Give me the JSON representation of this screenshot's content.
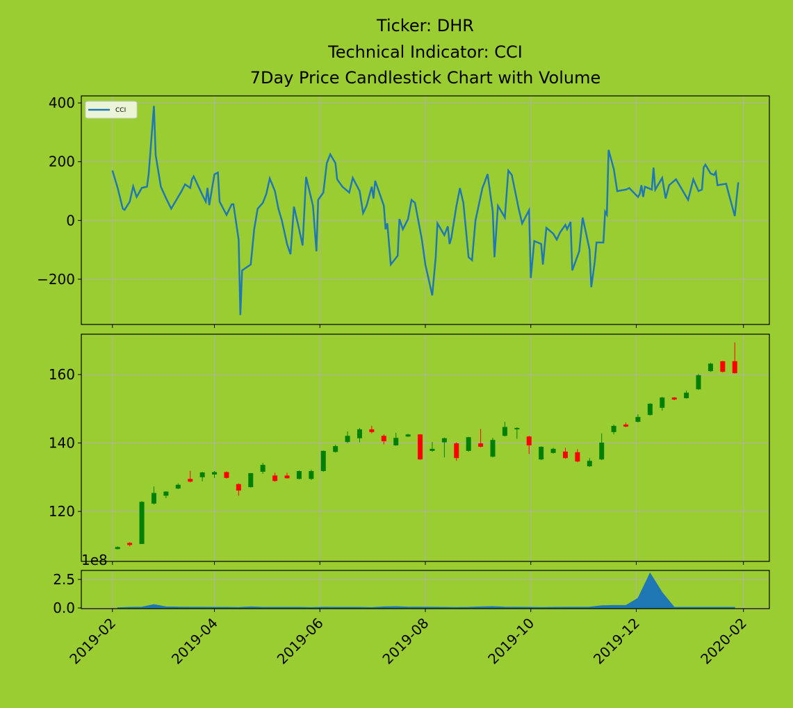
{
  "chart_data": [
    {
      "type": "line",
      "title": [
        "Ticker: DHR",
        "Technical Indicator: CCI",
        "7Day Price Candlestick Chart with Volume"
      ],
      "x": [
        "2019-02-01",
        "2019-02-04",
        "2019-02-07",
        "2019-02-08",
        "2019-02-11",
        "2019-02-13",
        "2019-02-15",
        "2019-02-18",
        "2019-02-21",
        "2019-02-22",
        "2019-02-25",
        "2019-02-26",
        "2019-03-01",
        "2019-03-04",
        "2019-03-07",
        "2019-03-08",
        "2019-03-13",
        "2019-03-15",
        "2019-03-18",
        "2019-03-19",
        "2019-03-20",
        "2019-03-25",
        "2019-03-27",
        "2019-03-28",
        "2019-03-29",
        "2019-04-01",
        "2019-04-03",
        "2019-04-04",
        "2019-04-08",
        "2019-04-11",
        "2019-04-12",
        "2019-04-15",
        "2019-04-16",
        "2019-04-17",
        "2019-04-22",
        "2019-04-24",
        "2019-04-26",
        "2019-04-29",
        "2019-05-01",
        "2019-05-03",
        "2019-05-06",
        "2019-05-08",
        "2019-05-10",
        "2019-05-13",
        "2019-05-15",
        "2019-05-17",
        "2019-05-20",
        "2019-05-22",
        "2019-05-24",
        "2019-05-28",
        "2019-05-30",
        "2019-05-31",
        "2019-06-03",
        "2019-06-05",
        "2019-06-07",
        "2019-06-10",
        "2019-06-11",
        "2019-06-14",
        "2019-06-18",
        "2019-06-20",
        "2019-06-24",
        "2019-06-26",
        "2019-06-28",
        "2019-07-01",
        "2019-07-02",
        "2019-07-03",
        "2019-07-08",
        "2019-07-09",
        "2019-07-10",
        "2019-07-12",
        "2019-07-16",
        "2019-07-17",
        "2019-07-19",
        "2019-07-22",
        "2019-07-24",
        "2019-07-26",
        "2019-07-30",
        "2019-08-01",
        "2019-08-05",
        "2019-08-07",
        "2019-08-08",
        "2019-08-12",
        "2019-08-14",
        "2019-08-15",
        "2019-08-16",
        "2019-08-19",
        "2019-08-21",
        "2019-08-23",
        "2019-08-26",
        "2019-08-28",
        "2019-08-30",
        "2019-09-03",
        "2019-09-04",
        "2019-09-06",
        "2019-09-09",
        "2019-09-10",
        "2019-09-12",
        "2019-09-16",
        "2019-09-18",
        "2019-09-20",
        "2019-09-24",
        "2019-09-26",
        "2019-09-30",
        "2019-10-01",
        "2019-10-03",
        "2019-10-07",
        "2019-10-08",
        "2019-10-10",
        "2019-10-14",
        "2019-10-16",
        "2019-10-18",
        "2019-10-21",
        "2019-10-22",
        "2019-10-24",
        "2019-10-25",
        "2019-10-29",
        "2019-10-31",
        "2019-11-04",
        "2019-11-05",
        "2019-11-07",
        "2019-11-08",
        "2019-11-12",
        "2019-11-13",
        "2019-11-14",
        "2019-11-15",
        "2019-11-18",
        "2019-11-20",
        "2019-11-25",
        "2019-11-27",
        "2019-12-02",
        "2019-12-03",
        "2019-12-04",
        "2019-12-05",
        "2019-12-06",
        "2019-12-10",
        "2019-12-11",
        "2019-12-12",
        "2019-12-16",
        "2019-12-18",
        "2019-12-20",
        "2019-12-24",
        "2019-12-27",
        "2019-12-31",
        "2020-01-03",
        "2020-01-06",
        "2020-01-08",
        "2020-01-09",
        "2020-01-10",
        "2020-01-13",
        "2020-01-15",
        "2020-01-16",
        "2020-01-17",
        "2020-01-22",
        "2020-01-24",
        "2020-01-27",
        "2020-01-29"
      ],
      "series": [
        {
          "name": "CCI",
          "color": "#1f77b4",
          "values": [
            170,
            111,
            40,
            36,
            64,
            116,
            80,
            111,
            115,
            160,
            390,
            223,
            115,
            76,
            40,
            50,
            100,
            123,
            111,
            140,
            150,
            87,
            64,
            111,
            52,
            157,
            163,
            64,
            19,
            55,
            55,
            -65,
            -322,
            -170,
            -150,
            -30,
            40,
            60,
            90,
            143,
            100,
            40,
            0,
            -80,
            -115,
            47,
            -30,
            -85,
            148,
            50,
            -105,
            70,
            95,
            195,
            225,
            195,
            140,
            115,
            95,
            145,
            100,
            25,
            50,
            115,
            75,
            135,
            50,
            -30,
            -10,
            -150,
            -120,
            5,
            -30,
            5,
            70,
            60,
            -65,
            -150,
            -255,
            -125,
            -10,
            -50,
            -20,
            -80,
            -60,
            50,
            110,
            60,
            -125,
            -135,
            0,
            110,
            125,
            158,
            30,
            -125,
            50,
            10,
            170,
            155,
            40,
            -10,
            35,
            -196,
            -70,
            -80,
            -150,
            -25,
            -45,
            -65,
            -40,
            -15,
            -30,
            -5,
            -170,
            -105,
            10,
            -100,
            -227,
            -140,
            -75,
            -75,
            30,
            20,
            240,
            175,
            100,
            105,
            110,
            80,
            90,
            120,
            80,
            115,
            105,
            180,
            105,
            145,
            75,
            120,
            140,
            110,
            70,
            140,
            100,
            105,
            180,
            190,
            160,
            155,
            165,
            120,
            125,
            80,
            15,
            130
          ]
        }
      ],
      "legend": "upper left",
      "xlim": [
        "2019-01-14",
        "2020-02-16"
      ],
      "xticks": [
        "2019-02",
        "2019-04",
        "2019-06",
        "2019-08",
        "2019-10",
        "2019-12",
        "2020-02"
      ],
      "xticklabels": false,
      "ylim": [
        -354,
        424
      ],
      "yticks": [
        {
          "value": -200,
          "label": "−200"
        },
        0,
        200,
        400
      ],
      "grid": true
    },
    {
      "type": "candlestick",
      "x": [
        "2019-02-04",
        "2019-02-11",
        "2019-02-18",
        "2019-02-25",
        "2019-03-04",
        "2019-03-11",
        "2019-03-18",
        "2019-03-25",
        "2019-04-01",
        "2019-04-08",
        "2019-04-15",
        "2019-04-22",
        "2019-04-29",
        "2019-05-06",
        "2019-05-13",
        "2019-05-20",
        "2019-05-27",
        "2019-06-03",
        "2019-06-10",
        "2019-06-17",
        "2019-06-24",
        "2019-07-01",
        "2019-07-08",
        "2019-07-15",
        "2019-07-22",
        "2019-07-29",
        "2019-08-05",
        "2019-08-12",
        "2019-08-19",
        "2019-08-26",
        "2019-09-02",
        "2019-09-09",
        "2019-09-16",
        "2019-09-23",
        "2019-09-30",
        "2019-10-07",
        "2019-10-14",
        "2019-10-21",
        "2019-10-28",
        "2019-11-04",
        "2019-11-11",
        "2019-11-18",
        "2019-11-25",
        "2019-12-02",
        "2019-12-09",
        "2019-12-16",
        "2019-12-23",
        "2019-12-30",
        "2020-01-06",
        "2020-01-13",
        "2020-01-20",
        "2020-01-27"
      ],
      "open": [
        109,
        110.8,
        110.5,
        122.3,
        124.6,
        126.7,
        129.5,
        130,
        130.8,
        131.5,
        128,
        127.1,
        131.6,
        130.5,
        130.5,
        129.5,
        129.5,
        131.8,
        137.4,
        140.3,
        141.4,
        144,
        142.1,
        139.3,
        141.9,
        142.5,
        137.7,
        140.2,
        139.9,
        137.7,
        139.9,
        136,
        142.1,
        144,
        141.9,
        135.2,
        137.1,
        137.5,
        137.3,
        133.2,
        135.2,
        143.2,
        145.4,
        146.2,
        148.2,
        150.3,
        153.3,
        153.1,
        155.7,
        161,
        163.9,
        163.9
      ],
      "high": [
        109.8,
        111,
        123,
        127.3,
        125.9,
        128.2,
        131.9,
        131.6,
        131.8,
        131.7,
        128.2,
        131.2,
        134.2,
        131.3,
        131.3,
        132,
        132.2,
        137.8,
        139.5,
        143.4,
        144.4,
        145,
        142.5,
        143,
        142.7,
        142.6,
        140.3,
        141.6,
        140.2,
        141.8,
        144.1,
        141.5,
        146.2,
        144.6,
        142.1,
        139,
        138.6,
        138.6,
        138.2,
        135.6,
        142.8,
        145.4,
        146,
        148.4,
        151.6,
        153.5,
        153.4,
        155.3,
        160.2,
        163.4,
        164,
        169.4
      ],
      "low": [
        108.9,
        109.8,
        110.5,
        122,
        123.9,
        126.5,
        128.5,
        128.8,
        129.8,
        129.6,
        124.6,
        127,
        131,
        128.7,
        129.6,
        129.4,
        129.2,
        131.6,
        137.2,
        140,
        140.2,
        142.8,
        139.6,
        139.2,
        141.8,
        135.1,
        137.5,
        135.8,
        134.8,
        137.5,
        138.7,
        135.8,
        141.9,
        141.2,
        136.8,
        135,
        136.9,
        135.4,
        134.4,
        133,
        135,
        142.5,
        144.6,
        146,
        148,
        149.5,
        152.5,
        153,
        155.5,
        160.8,
        160.6,
        160.3
      ],
      "close": [
        109.6,
        110.2,
        122.8,
        125.4,
        125.8,
        127.8,
        128.7,
        131.4,
        131.5,
        129.8,
        126.1,
        131.2,
        133.6,
        128.9,
        129.7,
        131.8,
        131.8,
        137.7,
        139.1,
        142.1,
        144,
        143.2,
        140.5,
        141.5,
        142.5,
        135.2,
        138.3,
        141.4,
        135.6,
        141.7,
        138.9,
        140.9,
        144.7,
        144.4,
        139.3,
        138.9,
        138.3,
        135.6,
        134.6,
        134.8,
        140.1,
        145,
        144.8,
        147.6,
        151.5,
        153.3,
        152.7,
        154.7,
        159.8,
        163.2,
        160.8,
        160.4
      ],
      "up_color": "green",
      "down_color": "red",
      "xlim": [
        "2019-01-14",
        "2020-02-16"
      ],
      "xticks": [
        "2019-02",
        "2019-04",
        "2019-06",
        "2019-08",
        "2019-10",
        "2019-12",
        "2020-02"
      ],
      "xticklabels": false,
      "ylim": [
        105.4,
        171.8
      ],
      "yticks": [
        120,
        140,
        160
      ],
      "grid": true
    },
    {
      "type": "area",
      "x": [
        "2019-02-04",
        "2019-02-11",
        "2019-02-18",
        "2019-02-25",
        "2019-03-04",
        "2019-03-11",
        "2019-03-18",
        "2019-03-25",
        "2019-04-01",
        "2019-04-08",
        "2019-04-15",
        "2019-04-22",
        "2019-04-29",
        "2019-05-06",
        "2019-05-13",
        "2019-05-20",
        "2019-05-27",
        "2019-06-03",
        "2019-06-10",
        "2019-06-17",
        "2019-06-24",
        "2019-07-01",
        "2019-07-08",
        "2019-07-15",
        "2019-07-22",
        "2019-07-29",
        "2019-08-05",
        "2019-08-12",
        "2019-08-19",
        "2019-08-26",
        "2019-09-02",
        "2019-09-09",
        "2019-09-16",
        "2019-09-23",
        "2019-09-30",
        "2019-10-07",
        "2019-10-14",
        "2019-10-21",
        "2019-10-28",
        "2019-11-04",
        "2019-11-11",
        "2019-11-18",
        "2019-11-25",
        "2019-12-02",
        "2019-12-09",
        "2019-12-16",
        "2019-12-23",
        "2019-12-30",
        "2020-01-06",
        "2020-01-13",
        "2020-01-20",
        "2020-01-27"
      ],
      "values": [
        0.02,
        0.06,
        0.08,
        0.3,
        0.1,
        0.08,
        0.07,
        0.07,
        0.06,
        0.06,
        0.05,
        0.1,
        0.06,
        0.06,
        0.06,
        0.06,
        0.04,
        0.07,
        0.06,
        0.06,
        0.06,
        0.04,
        0.1,
        0.12,
        0.08,
        0.08,
        0.07,
        0.06,
        0.05,
        0.06,
        0.1,
        0.12,
        0.08,
        0.07,
        0.06,
        0.05,
        0.06,
        0.07,
        0.07,
        0.08,
        0.2,
        0.22,
        0.22,
        0.85,
        3.05,
        1.35,
        0.06,
        0.06,
        0.06,
        0.06,
        0.06,
        0.06
      ],
      "color": "#1f77b4",
      "offset_label": "1e8",
      "xlim": [
        "2019-01-14",
        "2020-02-16"
      ],
      "xticks": [
        "2019-02",
        "2019-04",
        "2019-06",
        "2019-08",
        "2019-10",
        "2019-12",
        "2020-02"
      ],
      "xticklabels": true,
      "ylim": [
        -0.06,
        3.29
      ],
      "yticks": [
        {
          "value": 0,
          "label": "0.0"
        },
        2.5
      ],
      "grid": true
    }
  ]
}
